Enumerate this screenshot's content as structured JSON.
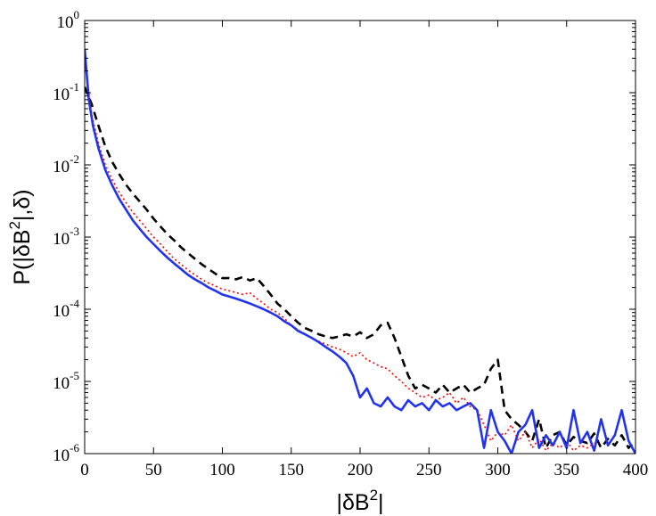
{
  "chart_data": {
    "type": "line",
    "title": "",
    "xlabel": "|δB²|",
    "xlabel_parts": {
      "pre": "|δB",
      "sup": "2",
      "post": "|"
    },
    "ylabel": "P(|δB²|,δ)",
    "ylabel_parts": {
      "pre": "P(|δB",
      "sup": "2",
      "post": "|,δ)"
    },
    "y_scale": "log",
    "xlim": [
      0,
      400
    ],
    "ylim": [
      1e-06,
      1
    ],
    "x_ticks": [
      0,
      50,
      100,
      150,
      200,
      250,
      300,
      350,
      400
    ],
    "y_ticks": [
      {
        "value": 1.0,
        "base": "10",
        "exp": "0"
      },
      {
        "value": 0.1,
        "base": "10",
        "exp": "-1"
      },
      {
        "value": 0.01,
        "base": "10",
        "exp": "-2"
      },
      {
        "value": 0.001,
        "base": "10",
        "exp": "-3"
      },
      {
        "value": 0.0001,
        "base": "10",
        "exp": "-4"
      },
      {
        "value": 1e-05,
        "base": "10",
        "exp": "-5"
      },
      {
        "value": 1e-06,
        "base": "10",
        "exp": "-6"
      }
    ],
    "series": [
      {
        "name": "black-dashed",
        "color": "#000000",
        "style": "dashed",
        "points": [
          [
            0,
            0.12
          ],
          [
            5,
            0.07
          ],
          [
            10,
            0.035
          ],
          [
            15,
            0.018
          ],
          [
            20,
            0.011
          ],
          [
            25,
            0.0075
          ],
          [
            30,
            0.0053
          ],
          [
            35,
            0.004
          ],
          [
            40,
            0.0031
          ],
          [
            45,
            0.0024
          ],
          [
            50,
            0.0018
          ],
          [
            55,
            0.0014
          ],
          [
            60,
            0.0011
          ],
          [
            65,
            0.0009
          ],
          [
            70,
            0.00072
          ],
          [
            75,
            0.0006
          ],
          [
            80,
            0.0005
          ],
          [
            85,
            0.00042
          ],
          [
            90,
            0.00036
          ],
          [
            95,
            0.00031
          ],
          [
            100,
            0.00027
          ],
          [
            105,
            0.00027
          ],
          [
            110,
            0.00026
          ],
          [
            115,
            0.00028
          ],
          [
            120,
            0.00025
          ],
          [
            125,
            0.00027
          ],
          [
            130,
            0.00021
          ],
          [
            135,
            0.00016
          ],
          [
            140,
            0.00012
          ],
          [
            145,
            0.0001
          ],
          [
            150,
            8e-05
          ],
          [
            155,
            6.5e-05
          ],
          [
            160,
            5.5e-05
          ],
          [
            165,
            5e-05
          ],
          [
            170,
            4.5e-05
          ],
          [
            175,
            4.2e-05
          ],
          [
            180,
            4e-05
          ],
          [
            185,
            4.2e-05
          ],
          [
            190,
            4.5e-05
          ],
          [
            195,
            4.2e-05
          ],
          [
            200,
            4.8e-05
          ],
          [
            205,
            4e-05
          ],
          [
            210,
            4.5e-05
          ],
          [
            215,
            6e-05
          ],
          [
            220,
            6.5e-05
          ],
          [
            225,
            4e-05
          ],
          [
            230,
            2.2e-05
          ],
          [
            235,
            1.2e-05
          ],
          [
            240,
            8e-06
          ],
          [
            245,
            9e-06
          ],
          [
            250,
            8e-06
          ],
          [
            255,
            7e-06
          ],
          [
            260,
            9e-06
          ],
          [
            265,
            7e-06
          ],
          [
            270,
            8e-06
          ],
          [
            275,
            9e-06
          ],
          [
            280,
            7e-06
          ],
          [
            285,
            8e-06
          ],
          [
            290,
            9e-06
          ],
          [
            295,
            1.5e-05
          ],
          [
            300,
            2e-05
          ],
          [
            305,
            4e-06
          ],
          [
            310,
            3e-06
          ],
          [
            315,
            2.5e-06
          ],
          [
            320,
            2e-06
          ],
          [
            325,
            1.5e-06
          ],
          [
            330,
            3e-06
          ],
          [
            335,
            1.2e-06
          ],
          [
            340,
            1.8e-06
          ],
          [
            345,
            2e-06
          ],
          [
            350,
            1.3e-06
          ],
          [
            355,
            1.7e-06
          ],
          [
            360,
            1.5e-06
          ],
          [
            365,
            1.4e-06
          ],
          [
            370,
            1.9e-06
          ],
          [
            375,
            1.2e-06
          ],
          [
            380,
            1.6e-06
          ],
          [
            385,
            1.3e-06
          ],
          [
            390,
            1.8e-06
          ],
          [
            395,
            1.2e-06
          ],
          [
            400,
            1.5e-06
          ]
        ]
      },
      {
        "name": "red-dotted",
        "color": "#ff0000",
        "style": "dotted",
        "points": [
          [
            0,
            0.3
          ],
          [
            5,
            0.05
          ],
          [
            10,
            0.02
          ],
          [
            15,
            0.01
          ],
          [
            20,
            0.0062
          ],
          [
            25,
            0.0042
          ],
          [
            30,
            0.003
          ],
          [
            35,
            0.0022
          ],
          [
            40,
            0.0017
          ],
          [
            45,
            0.0013
          ],
          [
            50,
            0.001
          ],
          [
            55,
            0.0008
          ],
          [
            60,
            0.00063
          ],
          [
            65,
            0.0005
          ],
          [
            70,
            0.00042
          ],
          [
            75,
            0.00035
          ],
          [
            80,
            0.0003
          ],
          [
            85,
            0.00026
          ],
          [
            90,
            0.00023
          ],
          [
            95,
            0.00021
          ],
          [
            100,
            0.00019
          ],
          [
            105,
            0.00018
          ],
          [
            110,
            0.00017
          ],
          [
            115,
            0.00016
          ],
          [
            120,
            0.00017
          ],
          [
            125,
            0.00014
          ],
          [
            130,
            0.00012
          ],
          [
            135,
            0.0001
          ],
          [
            140,
            9e-05
          ],
          [
            145,
            7.5e-05
          ],
          [
            150,
            6e-05
          ],
          [
            155,
            5.2e-05
          ],
          [
            160,
            4.5e-05
          ],
          [
            165,
            4e-05
          ],
          [
            170,
            3.6e-05
          ],
          [
            175,
            3.3e-05
          ],
          [
            180,
            3e-05
          ],
          [
            185,
            2.8e-05
          ],
          [
            190,
            2.5e-05
          ],
          [
            195,
            2.2e-05
          ],
          [
            200,
            2.5e-05
          ],
          [
            205,
            2e-05
          ],
          [
            210,
            1.8e-05
          ],
          [
            215,
            1.6e-05
          ],
          [
            220,
            1.5e-05
          ],
          [
            225,
            1.2e-05
          ],
          [
            230,
            1e-05
          ],
          [
            235,
            8e-06
          ],
          [
            240,
            7e-06
          ],
          [
            245,
            6e-06
          ],
          [
            250,
            6.5e-06
          ],
          [
            255,
            5.5e-06
          ],
          [
            260,
            6e-06
          ],
          [
            265,
            7e-06
          ],
          [
            270,
            5e-06
          ],
          [
            275,
            6e-06
          ],
          [
            280,
            4.5e-06
          ],
          [
            285,
            4e-06
          ],
          [
            290,
            2.5e-06
          ],
          [
            295,
            1.5e-06
          ],
          [
            300,
            2e-06
          ],
          [
            305,
            1.8e-06
          ],
          [
            310,
            2.5e-06
          ],
          [
            315,
            1.5e-06
          ],
          [
            320,
            2e-06
          ],
          [
            325,
            1.2e-06
          ],
          [
            330,
            1.6e-06
          ],
          [
            335,
            1.1e-06
          ],
          [
            340,
            1.4e-06
          ],
          [
            345,
            1.2e-06
          ],
          [
            350,
            1.5e-06
          ],
          [
            355,
            1.1e-06
          ],
          [
            360,
            1.3e-06
          ],
          [
            365,
            1.2e-06
          ],
          [
            370,
            1.4e-06
          ]
        ]
      },
      {
        "name": "blue-solid",
        "color": "#2233ee",
        "style": "solid",
        "points": [
          [
            0,
            0.4
          ],
          [
            3,
            0.08
          ],
          [
            6,
            0.035
          ],
          [
            10,
            0.017
          ],
          [
            15,
            0.0085
          ],
          [
            20,
            0.0052
          ],
          [
            25,
            0.0034
          ],
          [
            30,
            0.0024
          ],
          [
            35,
            0.0017
          ],
          [
            40,
            0.0013
          ],
          [
            45,
            0.001
          ],
          [
            50,
            0.0008
          ],
          [
            55,
            0.00064
          ],
          [
            60,
            0.00052
          ],
          [
            65,
            0.00043
          ],
          [
            70,
            0.00036
          ],
          [
            75,
            0.0003
          ],
          [
            80,
            0.00026
          ],
          [
            85,
            0.00023
          ],
          [
            90,
            0.0002
          ],
          [
            95,
            0.00018
          ],
          [
            100,
            0.00016
          ],
          [
            105,
            0.00015
          ],
          [
            110,
            0.00014
          ],
          [
            115,
            0.00013
          ],
          [
            120,
            0.00012
          ],
          [
            125,
            0.00011
          ],
          [
            130,
            0.0001
          ],
          [
            135,
            9e-05
          ],
          [
            140,
            8e-05
          ],
          [
            145,
            6.8e-05
          ],
          [
            150,
            6e-05
          ],
          [
            155,
            5e-05
          ],
          [
            160,
            4.5e-05
          ],
          [
            165,
            4e-05
          ],
          [
            170,
            3.5e-05
          ],
          [
            175,
            3e-05
          ],
          [
            180,
            2.6e-05
          ],
          [
            185,
            2.2e-05
          ],
          [
            190,
            1.8e-05
          ],
          [
            195,
            1.2e-05
          ],
          [
            200,
            6e-06
          ],
          [
            205,
            8e-06
          ],
          [
            210,
            5e-06
          ],
          [
            215,
            4.5e-06
          ],
          [
            220,
            6e-06
          ],
          [
            225,
            4.5e-06
          ],
          [
            230,
            4e-06
          ],
          [
            235,
            5.5e-06
          ],
          [
            240,
            4.5e-06
          ],
          [
            245,
            5e-06
          ],
          [
            250,
            4e-06
          ],
          [
            255,
            5.5e-06
          ],
          [
            260,
            4.5e-06
          ],
          [
            265,
            5e-06
          ],
          [
            270,
            4e-06
          ],
          [
            275,
            4.5e-06
          ],
          [
            280,
            5e-06
          ],
          [
            285,
            4e-06
          ],
          [
            290,
            1.2e-06
          ],
          [
            295,
            4e-06
          ],
          [
            300,
            2e-06
          ],
          [
            305,
            1.5e-06
          ],
          [
            310,
            1e-06
          ],
          [
            315,
            2e-06
          ],
          [
            320,
            2.5e-06
          ],
          [
            325,
            4e-06
          ],
          [
            330,
            1.2e-06
          ],
          [
            335,
            1.8e-06
          ],
          [
            340,
            1.3e-06
          ],
          [
            345,
            2e-06
          ],
          [
            350,
            1.2e-06
          ],
          [
            355,
            4e-06
          ],
          [
            360,
            1.4e-06
          ],
          [
            365,
            2e-06
          ],
          [
            370,
            1.1e-06
          ],
          [
            375,
            3e-06
          ],
          [
            380,
            1.3e-06
          ],
          [
            385,
            1.8e-06
          ],
          [
            390,
            4e-06
          ],
          [
            395,
            1.5e-06
          ],
          [
            400,
            1e-06
          ]
        ]
      }
    ]
  }
}
